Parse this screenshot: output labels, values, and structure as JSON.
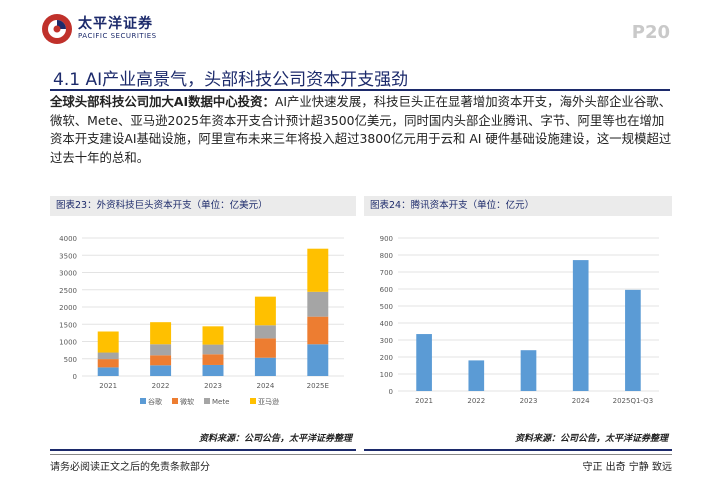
{
  "header": {
    "logo_cn": "太平洋证券",
    "logo_en": "PACIFIC SECURITIES",
    "page_number": "P20",
    "brand_color": "#1c2a6b",
    "accent_color": "#c0312b"
  },
  "section": {
    "title": "4.1 AI产业高景气，头部科技公司资本开支强劲"
  },
  "paragraph": {
    "lead": "全球头部科技公司加大AI数据中心投资：",
    "body": "AI产业快速发展，科技巨头正在显著增加资本开支，海外头部企业谷歌、微软、Mete、亚马逊2025年资本开支合计预计超3500亿美元，同时国内头部企业腾讯、字节、阿里等也在增加资本开支建设AI基础设施，阿里宣布未来三年将投入超过3800亿元用于云和 AI 硬件基础设施建设，这一规模超过过去十年的总和。"
  },
  "charts": {
    "left": {
      "caption": "图表23：外资科技巨头资本开支（单位：亿美元）",
      "source": "资料来源：公司公告，太平洋证券整理"
    },
    "right": {
      "caption": "图表24：腾讯资本开支（单位：亿元）",
      "source": "资料来源：公司公告，太平洋证券整理"
    }
  },
  "chart_data": [
    {
      "type": "bar",
      "stacked": true,
      "categories": [
        "2021",
        "2022",
        "2023",
        "2024",
        "2025E"
      ],
      "series": [
        {
          "name": "谷歌",
          "color": "#5b9bd5",
          "values": [
            250,
            310,
            320,
            530,
            920
          ]
        },
        {
          "name": "微软",
          "color": "#ed7d31",
          "values": [
            240,
            290,
            310,
            560,
            800
          ]
        },
        {
          "name": "Mete",
          "color": "#a5a5a5",
          "values": [
            190,
            320,
            280,
            380,
            720
          ]
        },
        {
          "name": "亚马逊",
          "color": "#ffc000",
          "values": [
            610,
            640,
            530,
            830,
            1250
          ]
        }
      ],
      "ylim": [
        0,
        4000
      ],
      "yticks": [
        0,
        500,
        1000,
        1500,
        2000,
        2500,
        3000,
        3500,
        4000
      ],
      "legend": "bottom",
      "grid": true
    },
    {
      "type": "bar",
      "categories": [
        "2021",
        "2022",
        "2023",
        "2024",
        "2025Q1-Q3"
      ],
      "series": [
        {
          "name": "",
          "color": "#5b9bd5",
          "values": [
            335,
            180,
            240,
            770,
            595
          ]
        }
      ],
      "ylim": [
        0,
        900
      ],
      "yticks": [
        0,
        100,
        200,
        300,
        400,
        500,
        600,
        700,
        800,
        900
      ],
      "legend": "none",
      "grid": true
    }
  ],
  "footer": {
    "disclaimer": "请务必阅读正文之后的免责条款部分",
    "motto": "守正  出奇  宁静  致远"
  }
}
